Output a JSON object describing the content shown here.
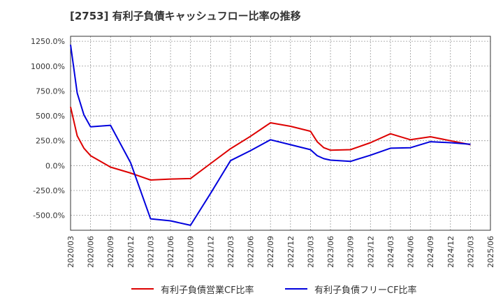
{
  "chart_data": {
    "type": "line",
    "title": "[2753]  有利子負債キャッシュフロー比率の推移",
    "xlabel": "",
    "ylabel": "",
    "ylim": [
      -650,
      1300
    ],
    "grid": true,
    "legend_position": "bottom",
    "y_ticks": [
      "1250.0%",
      "1000.0%",
      "750.0%",
      "500.0%",
      "250.0%",
      "0.0%",
      "-250.0%",
      "-500.0%"
    ],
    "y_tick_values": [
      1250,
      1000,
      750,
      500,
      250,
      0,
      -250,
      -500
    ],
    "x_ticks": [
      "2020/03",
      "2020/06",
      "2020/09",
      "2020/12",
      "2021/03",
      "2021/06",
      "2021/09",
      "2021/12",
      "2022/03",
      "2022/06",
      "2022/09",
      "2022/12",
      "2023/03",
      "2023/06",
      "2023/09",
      "2023/12",
      "2024/03",
      "2024/06",
      "2024/09",
      "2024/12",
      "2025/03",
      "2025/06"
    ],
    "series": [
      {
        "name": "有利子負債営業CF比率",
        "color": "#dd0000",
        "points": [
          [
            "2020/03",
            590
          ],
          [
            "2020/04",
            300
          ],
          [
            "2020/05",
            175
          ],
          [
            "2020/06",
            100
          ],
          [
            "2020/09",
            -15
          ],
          [
            "2020/12",
            -75
          ],
          [
            "2021/03",
            -145
          ],
          [
            "2021/06",
            -135
          ],
          [
            "2021/09",
            -130
          ],
          [
            "2021/12",
            20
          ],
          [
            "2022/03",
            170
          ],
          [
            "2022/06",
            295
          ],
          [
            "2022/09",
            430
          ],
          [
            "2022/12",
            395
          ],
          [
            "2023/03",
            345
          ],
          [
            "2023/04",
            240
          ],
          [
            "2023/05",
            180
          ],
          [
            "2023/06",
            155
          ],
          [
            "2023/09",
            160
          ],
          [
            "2023/12",
            230
          ],
          [
            "2024/03",
            320
          ],
          [
            "2024/06",
            260
          ],
          [
            "2024/09",
            290
          ],
          [
            "2024/12",
            250
          ],
          [
            "2025/03",
            210
          ]
        ]
      },
      {
        "name": "有利子負債フリーCF比率",
        "color": "#0000dd",
        "points": [
          [
            "2020/03",
            1215
          ],
          [
            "2020/04",
            730
          ],
          [
            "2020/05",
            510
          ],
          [
            "2020/06",
            390
          ],
          [
            "2020/09",
            405
          ],
          [
            "2020/12",
            30
          ],
          [
            "2021/03",
            -535
          ],
          [
            "2021/06",
            -555
          ],
          [
            "2021/09",
            -600
          ],
          [
            "2021/12",
            -280
          ],
          [
            "2022/03",
            50
          ],
          [
            "2022/06",
            150
          ],
          [
            "2022/09",
            260
          ],
          [
            "2022/12",
            210
          ],
          [
            "2023/03",
            160
          ],
          [
            "2023/04",
            100
          ],
          [
            "2023/05",
            70
          ],
          [
            "2023/06",
            55
          ],
          [
            "2023/09",
            42
          ],
          [
            "2023/12",
            105
          ],
          [
            "2024/03",
            175
          ],
          [
            "2024/06",
            180
          ],
          [
            "2024/09",
            240
          ],
          [
            "2024/12",
            230
          ],
          [
            "2025/03",
            215
          ]
        ]
      }
    ]
  }
}
